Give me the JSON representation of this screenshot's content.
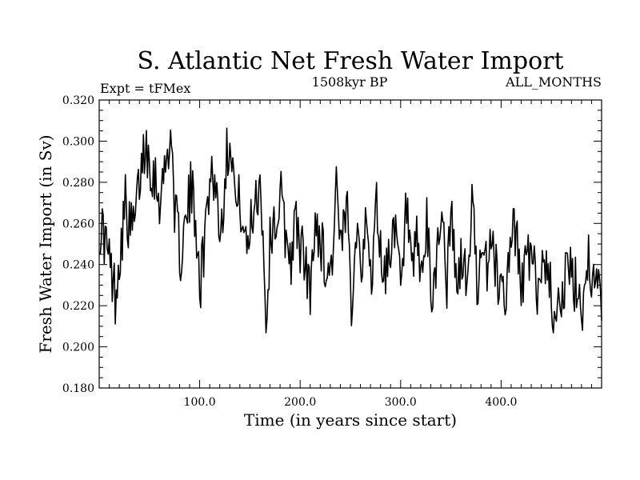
{
  "chart_data": {
    "type": "line",
    "title": "S. Atlantic Net Fresh Water Import",
    "subtitle_left": "Expt = tFMex",
    "subtitle_center": "1508kyr BP",
    "subtitle_right": "ALL_MONTHS",
    "xlabel": "Time (in years since start)",
    "ylabel": "Fresh Water Import (in Sv)",
    "xlim": [
      0,
      500
    ],
    "ylim": [
      0.18,
      0.32
    ],
    "x_ticks": [
      100,
      200,
      300,
      400
    ],
    "x_tick_labels": [
      "100.0",
      "200.0",
      "300.0",
      "400.0"
    ],
    "y_ticks": [
      0.18,
      0.2,
      0.22,
      0.24,
      0.26,
      0.28,
      0.3,
      0.32
    ],
    "y_tick_labels": [
      "0.180",
      "0.200",
      "0.220",
      "0.240",
      "0.260",
      "0.280",
      "0.300",
      "0.320"
    ],
    "line_color": "#000000",
    "series": [
      {
        "name": "Net Fresh Water Import",
        "x_start": 1,
        "x_step": 5,
        "values": [
          0.26,
          0.252,
          0.238,
          0.226,
          0.248,
          0.27,
          0.255,
          0.262,
          0.285,
          0.3,
          0.29,
          0.282,
          0.272,
          0.288,
          0.305,
          0.262,
          0.245,
          0.258,
          0.276,
          0.265,
          0.23,
          0.26,
          0.288,
          0.278,
          0.255,
          0.29,
          0.305,
          0.268,
          0.27,
          0.245,
          0.26,
          0.275,
          0.28,
          0.212,
          0.258,
          0.262,
          0.272,
          0.252,
          0.245,
          0.26,
          0.248,
          0.236,
          0.228,
          0.264,
          0.25,
          0.238,
          0.238,
          0.278,
          0.242,
          0.27,
          0.225,
          0.26,
          0.245,
          0.255,
          0.235,
          0.27,
          0.242,
          0.235,
          0.258,
          0.248,
          0.225,
          0.27,
          0.228,
          0.25,
          0.232,
          0.258,
          0.22,
          0.246,
          0.268,
          0.232,
          0.262,
          0.225,
          0.245,
          0.228,
          0.27,
          0.235,
          0.235,
          0.24,
          0.255,
          0.232,
          0.23,
          0.228,
          0.262,
          0.248,
          0.23,
          0.245,
          0.238,
          0.23,
          0.238,
          0.245,
          0.215,
          0.228,
          0.222,
          0.24,
          0.23,
          0.228,
          0.22,
          0.245,
          0.235,
          0.225
        ]
      }
    ]
  }
}
